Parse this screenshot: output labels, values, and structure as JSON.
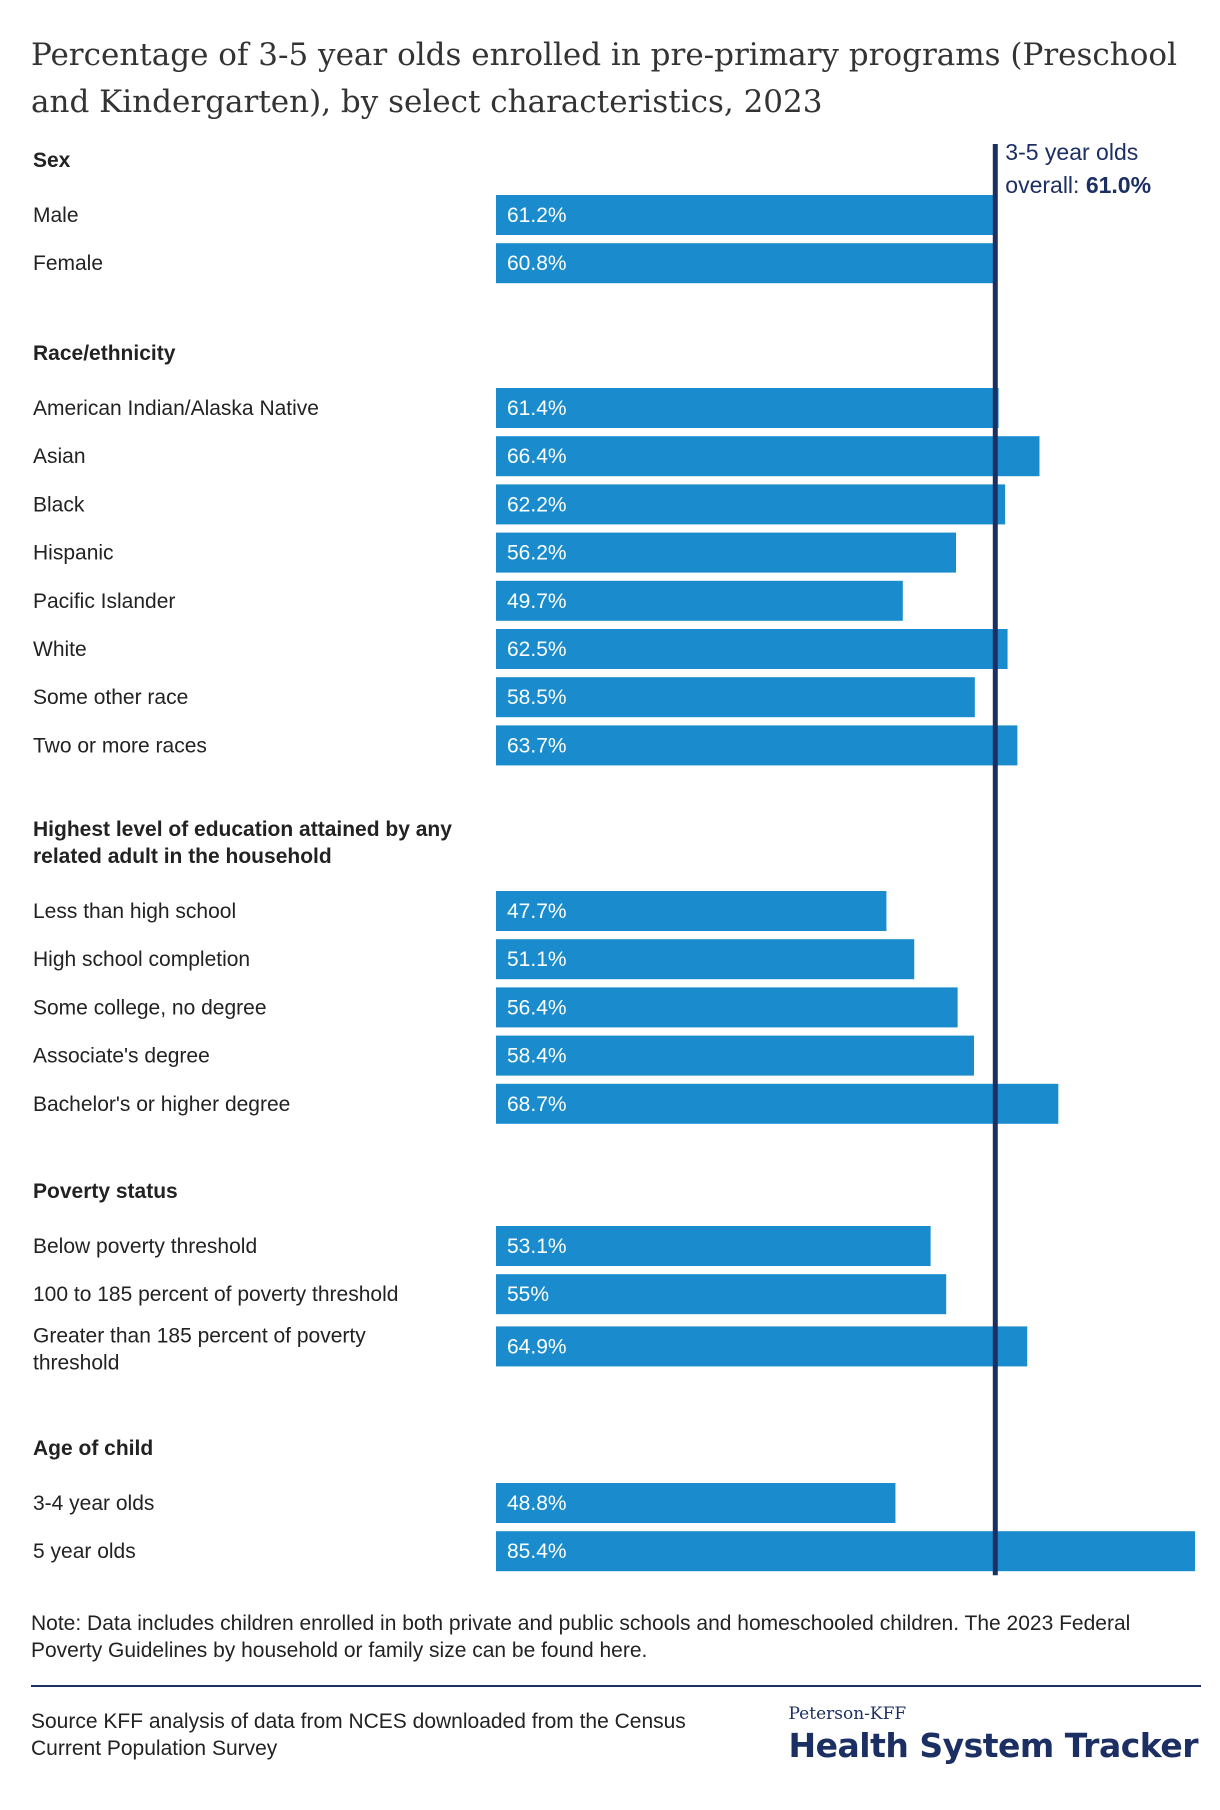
{
  "title": "Percentage of 3-5 year olds enrolled in pre-primary programs (Preschool and Kindergarten), by select characteristics, 2023",
  "reference": {
    "label_line1": "3-5 year olds",
    "label_line2_prefix": "overall: ",
    "label_value": "61.0%",
    "value": 61.0,
    "color": "#1c2f63"
  },
  "bar_color": "#1a8ccd",
  "chart_data": {
    "type": "bar",
    "orientation": "horizontal",
    "xlim": [
      0,
      85.4
    ],
    "groups": [
      {
        "name": "Sex",
        "items": [
          {
            "label": "Male",
            "value": 61.2,
            "display": "61.2%"
          },
          {
            "label": "Female",
            "value": 60.8,
            "display": "60.8%"
          }
        ]
      },
      {
        "name": "Race/ethnicity",
        "items": [
          {
            "label": "American Indian/Alaska Native",
            "value": 61.4,
            "display": "61.4%"
          },
          {
            "label": "Asian",
            "value": 66.4,
            "display": "66.4%"
          },
          {
            "label": "Black",
            "value": 62.2,
            "display": "62.2%"
          },
          {
            "label": "Hispanic",
            "value": 56.2,
            "display": "56.2%"
          },
          {
            "label": "Pacific Islander",
            "value": 49.7,
            "display": "49.7%"
          },
          {
            "label": "White",
            "value": 62.5,
            "display": "62.5%"
          },
          {
            "label": "Some other race",
            "value": 58.5,
            "display": "58.5%"
          },
          {
            "label": "Two or more races",
            "value": 63.7,
            "display": "63.7%"
          }
        ]
      },
      {
        "name": [
          "Highest level of education attained by any",
          "related adult in the household"
        ],
        "items": [
          {
            "label": "Less than high school",
            "value": 47.7,
            "display": "47.7%"
          },
          {
            "label": "High school completion",
            "value": 51.1,
            "display": "51.1%"
          },
          {
            "label": "Some college, no degree",
            "value": 56.4,
            "display": "56.4%"
          },
          {
            "label": "Associate's degree",
            "value": 58.4,
            "display": "58.4%"
          },
          {
            "label": "Bachelor's or higher degree",
            "value": 68.7,
            "display": "68.7%"
          }
        ]
      },
      {
        "name": "Poverty status",
        "items": [
          {
            "label": "Below poverty threshold",
            "value": 53.1,
            "display": "53.1%"
          },
          {
            "label": "100 to 185 percent of poverty threshold",
            "value": 55,
            "display": "55%"
          },
          {
            "label": [
              "Greater than 185 percent of poverty",
              "threshold"
            ],
            "value": 64.9,
            "display": "64.9%"
          }
        ]
      },
      {
        "name": "Age of child",
        "items": [
          {
            "label": "3-4 year olds",
            "value": 48.8,
            "display": "48.8%"
          },
          {
            "label": "5 year olds",
            "value": 85.4,
            "display": "85.4%"
          }
        ]
      }
    ]
  },
  "note": "Note: Data includes children enrolled in both private and public schools and homeschooled children. The 2023 Federal Poverty Guidelines by household or family size can be found here.",
  "source": "Source KFF analysis of data from NCES downloaded from the Census Current Population Survey",
  "brand": {
    "top": "Peterson-KFF",
    "main": "Health System Tracker"
  }
}
